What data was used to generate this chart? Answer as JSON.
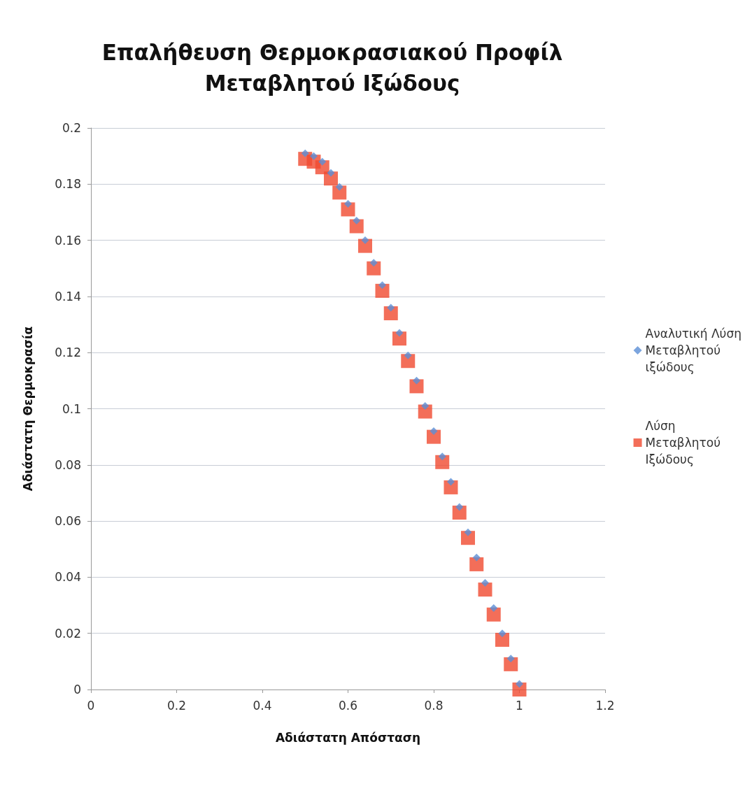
{
  "chart_data": {
    "type": "scatter",
    "title": "Επαλήθευση Θερμοκρασιακού Προφίλ\nΜεταβλητού Ιξώδους",
    "xlabel": "Αδιάστατη Απόσταση",
    "ylabel": "Αδιάστατη Θερμοκρασία",
    "x": [
      0.5,
      0.52,
      0.54,
      0.56,
      0.58,
      0.6,
      0.62,
      0.64,
      0.66,
      0.68,
      0.7,
      0.72,
      0.74,
      0.76,
      0.78,
      0.8,
      0.82,
      0.84,
      0.86,
      0.88,
      0.9,
      0.92,
      0.94,
      0.96,
      0.98,
      1.0
    ],
    "series": [
      {
        "name": "Αναλυτική Λύση\nΜεταβλητού\nιξώδους",
        "color": "#5b8fd6",
        "marker": "diamond",
        "values": [
          0.191,
          0.19,
          0.188,
          0.184,
          0.179,
          0.173,
          0.167,
          0.16,
          0.152,
          0.144,
          0.136,
          0.127,
          0.119,
          0.11,
          0.101,
          0.092,
          0.083,
          0.074,
          0.065,
          0.056,
          0.047,
          0.038,
          0.029,
          0.02,
          0.011,
          0.002
        ]
      },
      {
        "name": "Λύση\nΜεταβλητού\nΙξώδους",
        "color": "#f04a30",
        "marker": "square",
        "values": [
          0.189,
          0.188,
          0.186,
          0.182,
          0.177,
          0.171,
          0.165,
          0.158,
          0.15,
          0.142,
          0.134,
          0.125,
          0.117,
          0.108,
          0.099,
          0.09,
          0.081,
          0.072,
          0.063,
          0.054,
          0.0446,
          0.0356,
          0.0267,
          0.0177,
          0.009,
          0
        ]
      }
    ],
    "xlim": [
      0,
      1.2
    ],
    "xticks": [
      0,
      0.2,
      0.4,
      0.6,
      0.8,
      1,
      1.2
    ],
    "ylim": [
      0,
      0.2
    ],
    "yticks": [
      0,
      0.02,
      0.04,
      0.06,
      0.08,
      0.1,
      0.12,
      0.14,
      0.16,
      0.18,
      0.2
    ],
    "grid": "y",
    "legend": "right"
  }
}
